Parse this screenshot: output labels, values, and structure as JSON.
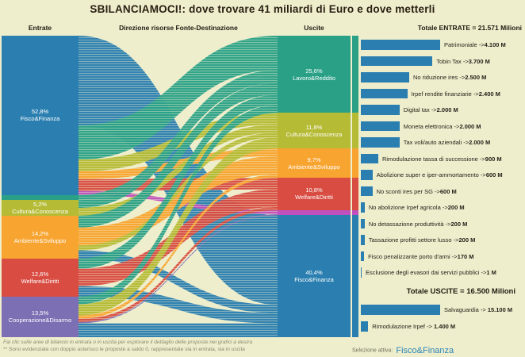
{
  "title": "SBILANCIAMOCI!: dove trovare 41 miliardi di Euro e dove metterli",
  "column_headers": {
    "entrate": "Entrate",
    "direzione": "Direzione risorse Fonte-Destinazione",
    "uscite": "Uscite"
  },
  "colors": {
    "fisco": "#2b7fb0",
    "lavoro": "#2aa187",
    "cultura": "#b5bb34",
    "ambiente": "#f8a430",
    "welfare": "#d84c42",
    "cooperazione": "#7d6fb4",
    "coop_sliver": "#c050bd",
    "bar": "#2b7fb0",
    "background": "#eeeecd",
    "accent_text": "#2e86b5"
  },
  "chart_data": [
    {
      "type": "sankey",
      "title": "Direzione risorse Fonte-Destinazione",
      "units": "percent of total budget",
      "nodes_left": [
        {
          "name": "Fisco&Finanza",
          "pct": 52.8,
          "pct_label": "52,8%",
          "color": "fisco"
        },
        {
          "name": "",
          "pct": 1.7,
          "pct_label": "",
          "color": "lavoro"
        },
        {
          "name": "Cultura&Conoscenza",
          "pct": 5.2,
          "pct_label": "5,2%",
          "color": "cultura"
        },
        {
          "name": "Ambiente&Sviluppo",
          "pct": 14.2,
          "pct_label": "14,2%",
          "color": "ambiente"
        },
        {
          "name": "Welfare&Diritti",
          "pct": 12.6,
          "pct_label": "12,6%",
          "color": "welfare"
        },
        {
          "name": "Cooperazione&Disarmo",
          "pct": 13.5,
          "pct_label": "13,5%",
          "color": "cooperazione"
        }
      ],
      "nodes_right": [
        {
          "name": "Lavoro&Reddito",
          "pct": 25.6,
          "pct_label": "25,6%",
          "color": "lavoro"
        },
        {
          "name": "Cultura&Conoscenza",
          "pct": 11.8,
          "pct_label": "11,8%",
          "color": "cultura"
        },
        {
          "name": "Ambiente&Sviluppo",
          "pct": 9.7,
          "pct_label": "9,7%",
          "color": "ambiente"
        },
        {
          "name": "Welfare&Diritti",
          "pct": 10.8,
          "pct_label": "10,8%",
          "color": "welfare"
        },
        {
          "name": "",
          "pct": 1.7,
          "pct_label": "",
          "color": "coop_sliver"
        },
        {
          "name": "Fisco&Finanza",
          "pct": 40.4,
          "pct_label": "40,4%",
          "color": "fisco"
        }
      ],
      "flows": [
        {
          "s": 0,
          "t": 5,
          "v": 29.7
        },
        {
          "s": 0,
          "t": 0,
          "v": 11.4
        },
        {
          "s": 0,
          "t": 1,
          "v": 3.9
        },
        {
          "s": 0,
          "t": 2,
          "v": 2.6
        },
        {
          "s": 0,
          "t": 3,
          "v": 3.9
        },
        {
          "s": 0,
          "t": 4,
          "v": 1.3
        },
        {
          "s": 1,
          "t": 0,
          "v": 1.7
        },
        {
          "s": 2,
          "t": 0,
          "v": 2.6
        },
        {
          "s": 2,
          "t": 1,
          "v": 2.6
        },
        {
          "s": 3,
          "t": 0,
          "v": 3.9
        },
        {
          "s": 3,
          "t": 2,
          "v": 6.0
        },
        {
          "s": 3,
          "t": 1,
          "v": 1.6
        },
        {
          "s": 3,
          "t": 5,
          "v": 2.7
        },
        {
          "s": 4,
          "t": 0,
          "v": 3.4
        },
        {
          "s": 4,
          "t": 3,
          "v": 5.8
        },
        {
          "s": 4,
          "t": 5,
          "v": 3.4
        },
        {
          "s": 5,
          "t": 0,
          "v": 2.6
        },
        {
          "s": 5,
          "t": 1,
          "v": 3.7
        },
        {
          "s": 5,
          "t": 2,
          "v": 1.1
        },
        {
          "s": 5,
          "t": 3,
          "v": 1.1
        },
        {
          "s": 5,
          "t": 4,
          "v": 0.4,
          "color": "cooperazione"
        },
        {
          "s": 5,
          "t": 5,
          "v": 4.6
        }
      ]
    },
    {
      "type": "bar",
      "title": "Totale ENTRATE = 21.571 Milioni",
      "orientation": "horizontal",
      "xlim": [
        0,
        4100
      ],
      "arrow": " ->",
      "categories": [
        "Patrimoniale",
        "Tobin Tax",
        "No riduzione ires",
        "Irpef rendite finanziarie",
        "Digital tax",
        "Moneta elettronica",
        "Tax voli/auto aziendali",
        "Rimodulazione tassa di successione",
        "Abolizione super e iper-ammortamento",
        "No sconti ires per SG",
        "No abolizione Irpef agricola",
        "No detassazione produttività",
        "Tassazione profitti settore lusso",
        "Fisco penalizzante porto d'armi",
        "Esclusione degli evasori dai servizi pubblici"
      ],
      "values": [
        4100,
        3700,
        2500,
        2400,
        2000,
        2000,
        2000,
        900,
        600,
        600,
        200,
        200,
        200,
        170,
        1
      ],
      "value_labels": [
        "4.100 M",
        "3.700 M",
        "2.500 M",
        "2.400 M",
        "2.000 M",
        "2.000 M",
        "2.000 M",
        "900 M",
        "600 M",
        "600 M",
        "200 M",
        "200 M",
        "200 M",
        "170 M",
        "1 M"
      ]
    },
    {
      "type": "bar",
      "title": "Totale USCITE = 16.500 Milioni",
      "orientation": "horizontal",
      "xlim": [
        0,
        15100
      ],
      "arrow": " -> ",
      "categories": [
        "Salvaguardia",
        "Rimodulazione Irpef"
      ],
      "values": [
        15100,
        1400
      ],
      "value_labels": [
        "15.100 M",
        "1.400 M"
      ]
    }
  ],
  "footnotes": {
    "line1": "Fai clic sulle aree di bilancio in entrata o in uscita per esplorare il dettaglio delle proposte nei grafici a destra",
    "line2": "** Sono evidenziate con doppio asterisco le proposte a saldo 0, rappresentate sia in entrata, sia in uscita"
  },
  "selection": {
    "label": "Selezione attiva:",
    "value": "Fisco&Finanza"
  }
}
